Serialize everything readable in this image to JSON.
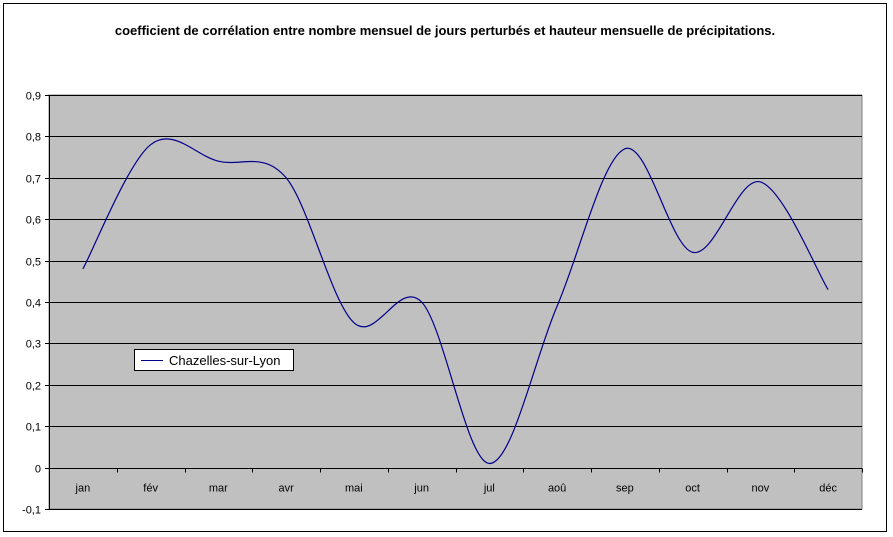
{
  "chart_data": {
    "type": "line",
    "title": "coefficient de corrélation entre nombre mensuel de jours perturbés et hauteur mensuelle de précipitations.",
    "categories": [
      "jan",
      "fév",
      "mar",
      "avr",
      "mai",
      "jun",
      "jul",
      "aoû",
      "sep",
      "oct",
      "nov",
      "déc"
    ],
    "series": [
      {
        "name": "Chazelles-sur-Lyon",
        "color": "#00008b",
        "values": [
          0.48,
          0.78,
          0.74,
          0.7,
          0.35,
          0.4,
          0.01,
          0.39,
          0.77,
          0.52,
          0.69,
          0.43
        ]
      }
    ],
    "ylim": [
      -0.1,
      0.9
    ],
    "yticks": [
      "-0,1",
      "0",
      "0,1",
      "0,2",
      "0,3",
      "0,4",
      "0,5",
      "0,6",
      "0,7",
      "0,8",
      "0,9"
    ],
    "xlabel": "",
    "ylabel": "",
    "grid": true,
    "legend_position": "left",
    "plot_background": "#c0c0c0"
  }
}
